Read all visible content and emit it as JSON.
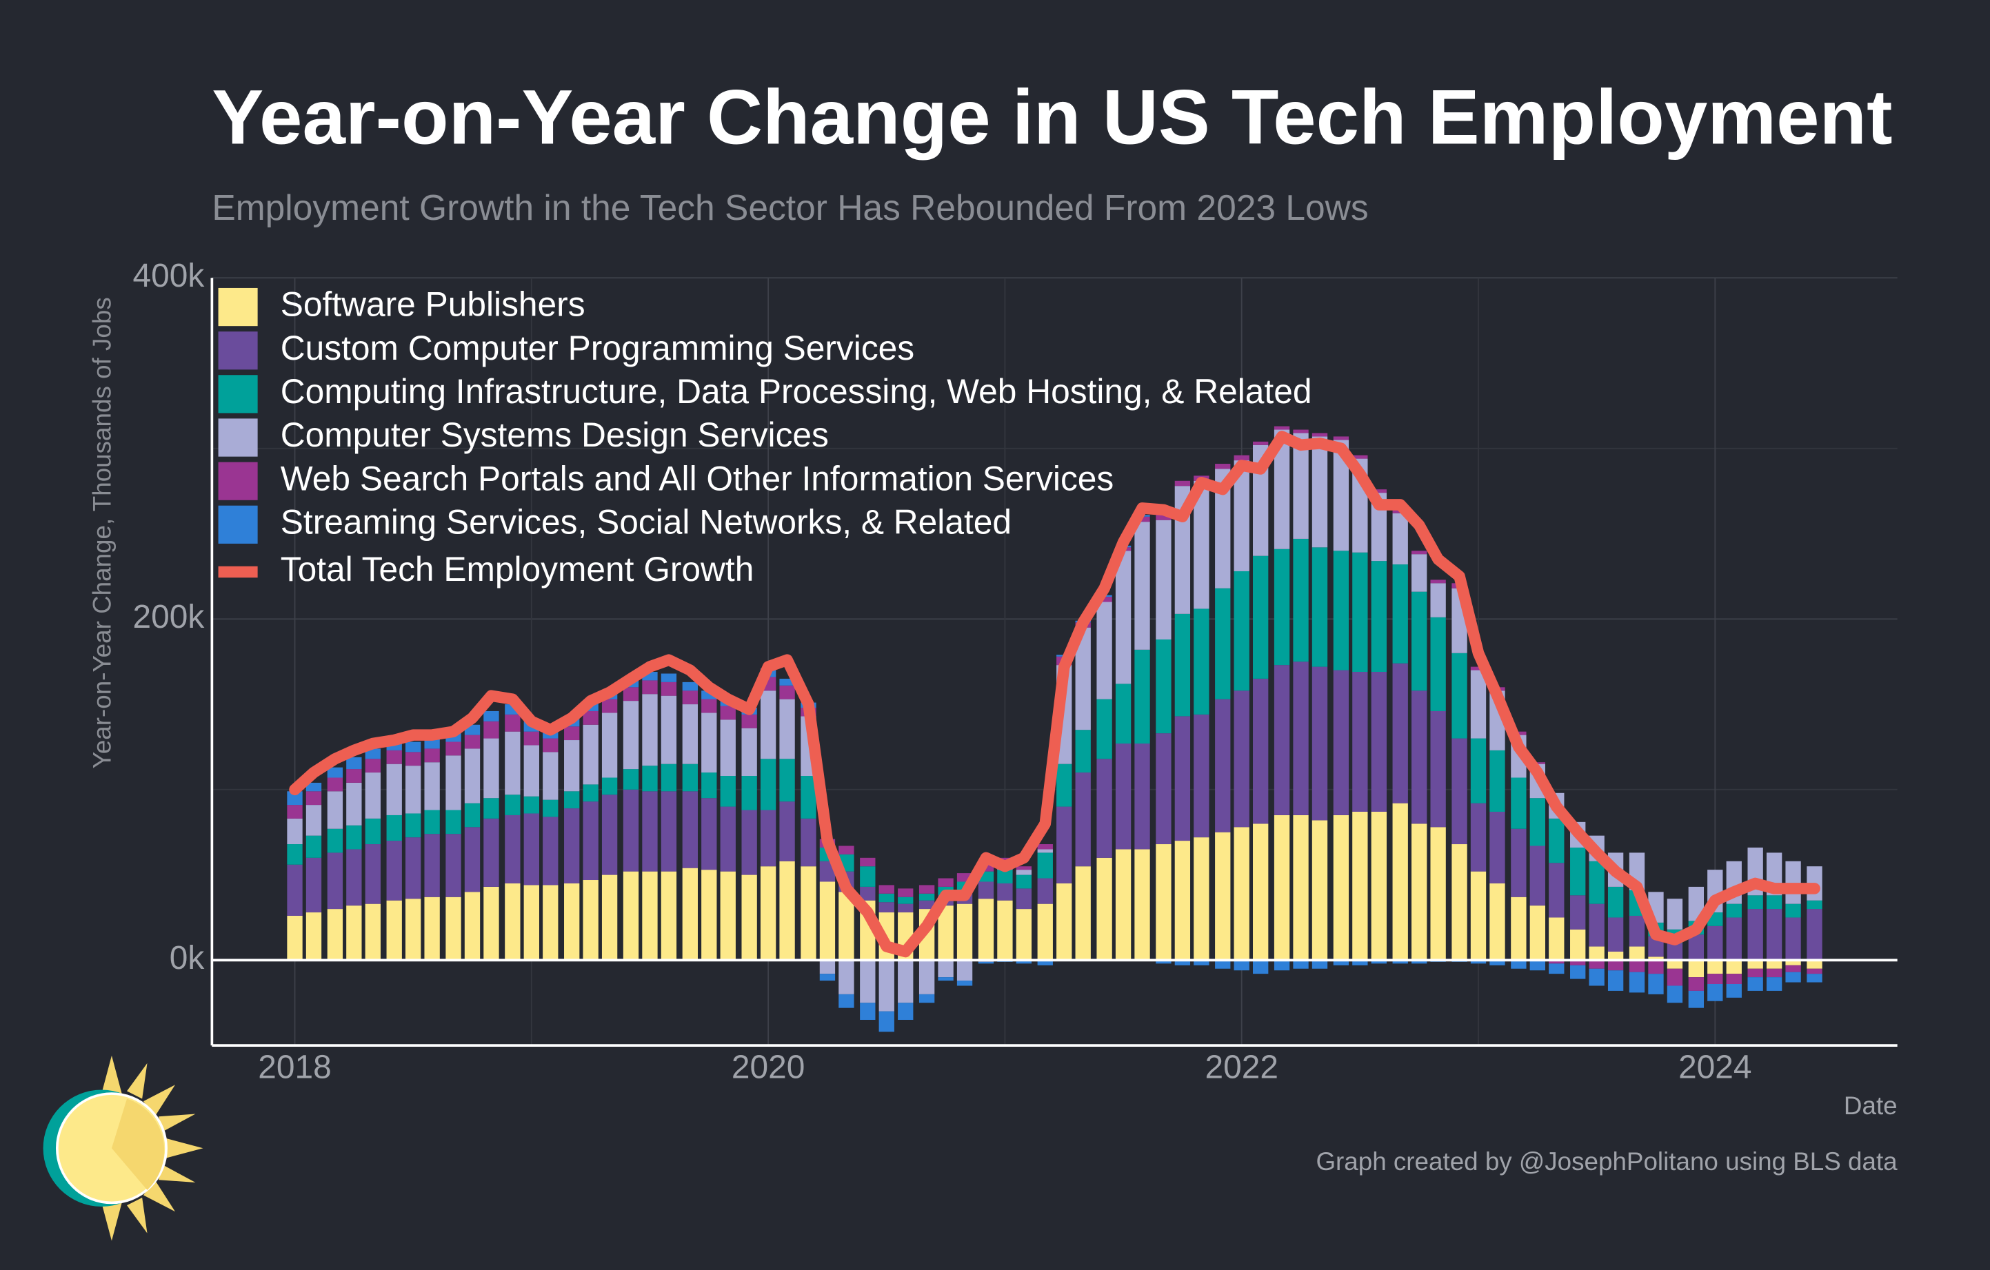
{
  "chart_data": {
    "type": "bar",
    "stacked": true,
    "title": "Year-on-Year Change in US Tech Employment",
    "subtitle": "Employment Growth in the Tech Sector Has Rebounded From 2023 Lows",
    "y_label": "Year-on-Year Change, Thousands of Jobs",
    "x_label": "Date",
    "caption": "Graph created by @JosephPolitano using BLS data",
    "legend": "top-left",
    "grid": true,
    "xlim": [
      2017.65,
      2024.77
    ],
    "xticks": [
      2018,
      2020,
      2022,
      2024
    ],
    "ylim": [
      -50,
      400
    ],
    "yticks": [
      {
        "value": 0,
        "label": "0k"
      },
      {
        "value": 200,
        "label": "200k"
      },
      {
        "value": 400,
        "label": "400k"
      }
    ],
    "x": [
      2018,
      2018.08,
      2018.17,
      2018.25,
      2018.33,
      2018.42,
      2018.5,
      2018.58,
      2018.67,
      2018.75,
      2018.83,
      2018.92,
      2019,
      2019.08,
      2019.17,
      2019.25,
      2019.33,
      2019.42,
      2019.5,
      2019.58,
      2019.67,
      2019.75,
      2019.83,
      2019.92,
      2020,
      2020.08,
      2020.17,
      2020.25,
      2020.33,
      2020.42,
      2020.5,
      2020.58,
      2020.67,
      2020.75,
      2020.83,
      2020.92,
      2021,
      2021.08,
      2021.17,
      2021.25,
      2021.33,
      2021.42,
      2021.5,
      2021.58,
      2021.67,
      2021.75,
      2021.83,
      2021.92,
      2022,
      2022.08,
      2022.17,
      2022.25,
      2022.33,
      2022.42,
      2022.5,
      2022.58,
      2022.67,
      2022.75,
      2022.83,
      2022.92,
      2023,
      2023.08,
      2023.17,
      2023.25,
      2023.33,
      2023.42,
      2023.5,
      2023.58,
      2023.67,
      2023.75,
      2023.83,
      2023.92,
      2024,
      2024.08,
      2024.17,
      2024.25,
      2024.33,
      2024.42
    ],
    "series": [
      {
        "name": "Software Publishers",
        "color": "#fde98a",
        "values": [
          26,
          28,
          30,
          32,
          33,
          35,
          36,
          37,
          37,
          40,
          43,
          45,
          44,
          44,
          45,
          47,
          50,
          52,
          52,
          52,
          54,
          53,
          52,
          50,
          55,
          58,
          55,
          46,
          40,
          35,
          28,
          28,
          30,
          32,
          33,
          36,
          35,
          30,
          33,
          45,
          55,
          60,
          65,
          65,
          68,
          70,
          72,
          75,
          78,
          80,
          85,
          85,
          82,
          85,
          87,
          87,
          92,
          80,
          78,
          68,
          52,
          45,
          37,
          32,
          25,
          18,
          8,
          5,
          8,
          2,
          -5,
          -10,
          -8,
          -8,
          -5,
          -5,
          -3,
          -5
        ]
      },
      {
        "name": "Custom Computer Programming Services",
        "color": "#6a4c9c",
        "values": [
          30,
          32,
          33,
          33,
          35,
          35,
          36,
          37,
          37,
          38,
          40,
          40,
          42,
          40,
          44,
          46,
          47,
          48,
          47,
          47,
          45,
          42,
          38,
          38,
          33,
          35,
          28,
          12,
          12,
          8,
          6,
          5,
          5,
          6,
          8,
          10,
          10,
          12,
          15,
          45,
          55,
          58,
          62,
          62,
          65,
          73,
          72,
          78,
          80,
          85,
          88,
          90,
          90,
          85,
          82,
          82,
          82,
          78,
          68,
          62,
          40,
          42,
          40,
          35,
          32,
          20,
          25,
          20,
          18,
          12,
          10,
          15,
          20,
          25,
          30,
          30,
          25,
          30
        ]
      },
      {
        "name": "Computing Infrastructure, Data Processing, Web Hosting, & Related",
        "color": "#00a19a",
        "values": [
          12,
          13,
          14,
          14,
          15,
          15,
          14,
          14,
          14,
          14,
          12,
          12,
          10,
          10,
          10,
          10,
          10,
          12,
          15,
          16,
          16,
          15,
          18,
          20,
          30,
          25,
          25,
          8,
          10,
          12,
          5,
          4,
          4,
          5,
          5,
          6,
          8,
          8,
          15,
          25,
          25,
          35,
          35,
          55,
          55,
          60,
          62,
          65,
          70,
          72,
          68,
          72,
          70,
          70,
          70,
          65,
          58,
          58,
          55,
          50,
          38,
          36,
          30,
          28,
          26,
          28,
          25,
          18,
          15,
          8,
          8,
          8,
          8,
          8,
          8,
          8,
          8,
          5
        ]
      },
      {
        "name": "Computer Systems Design Services",
        "color": "#a9acd6",
        "values": [
          15,
          18,
          22,
          25,
          27,
          30,
          28,
          28,
          32,
          32,
          35,
          37,
          30,
          28,
          30,
          35,
          38,
          40,
          42,
          40,
          35,
          35,
          33,
          28,
          40,
          35,
          35,
          -8,
          -20,
          -25,
          -30,
          -25,
          -20,
          -10,
          -12,
          -1,
          5,
          3,
          2,
          58,
          60,
          57,
          78,
          75,
          70,
          75,
          75,
          70,
          65,
          65,
          70,
          62,
          65,
          65,
          55,
          40,
          30,
          22,
          20,
          38,
          40,
          35,
          25,
          20,
          15,
          15,
          15,
          20,
          22,
          18,
          18,
          20,
          25,
          25,
          28,
          25,
          25,
          20
        ]
      },
      {
        "name": "Web Search Portals and All Other Information Services",
        "color": "#9a3592",
        "values": [
          8,
          8,
          8,
          8,
          8,
          8,
          8,
          8,
          8,
          8,
          10,
          10,
          8,
          8,
          8,
          8,
          8,
          8,
          8,
          8,
          8,
          8,
          8,
          8,
          8,
          8,
          5,
          5,
          5,
          5,
          5,
          5,
          5,
          5,
          5,
          6,
          2,
          2,
          3,
          5,
          3,
          3,
          2,
          3,
          3,
          3,
          3,
          3,
          3,
          2,
          2,
          2,
          2,
          2,
          2,
          2,
          2,
          2,
          2,
          3,
          2,
          2,
          2,
          1,
          -2,
          -3,
          -5,
          -6,
          -7,
          -8,
          -10,
          -8,
          -6,
          -6,
          -5,
          -5,
          -4,
          -3
        ]
      },
      {
        "name": "Streaming Services, Social Networks, & Related",
        "color": "#2f80d8",
        "values": [
          8,
          5,
          6,
          7,
          6,
          6,
          6,
          6,
          6,
          6,
          6,
          6,
          6,
          5,
          5,
          5,
          5,
          5,
          5,
          5,
          5,
          5,
          4,
          4,
          5,
          4,
          3,
          -4,
          -8,
          -10,
          -12,
          -10,
          -5,
          -2,
          -3,
          -1,
          -1,
          -2,
          -3,
          1,
          1,
          1,
          1,
          1,
          -2,
          -3,
          -3,
          -5,
          -6,
          -8,
          -6,
          -5,
          -5,
          -3,
          -3,
          -2,
          -2,
          -2,
          -1,
          -1,
          -2,
          -3,
          -5,
          -6,
          -6,
          -8,
          -10,
          -12,
          -12,
          -12,
          -10,
          -10,
          -10,
          -8,
          -8,
          -8,
          -6,
          -5
        ]
      }
    ],
    "line": {
      "name": "Total Tech Employment Growth",
      "color": "#ee5f52",
      "values": [
        100,
        110,
        118,
        123,
        127,
        129,
        132,
        132,
        134,
        142,
        155,
        153,
        140,
        135,
        142,
        152,
        157,
        165,
        172,
        176,
        170,
        160,
        153,
        147,
        172,
        176,
        150,
        70,
        42,
        28,
        8,
        5,
        20,
        38,
        38,
        60,
        55,
        60,
        80,
        172,
        198,
        218,
        245,
        265,
        264,
        260,
        280,
        276,
        290,
        288,
        307,
        302,
        303,
        300,
        285,
        267,
        267,
        255,
        235,
        225,
        180,
        155,
        125,
        110,
        90,
        75,
        63,
        52,
        43,
        15,
        12,
        18,
        35,
        40,
        45,
        42,
        42,
        42
      ]
    }
  }
}
